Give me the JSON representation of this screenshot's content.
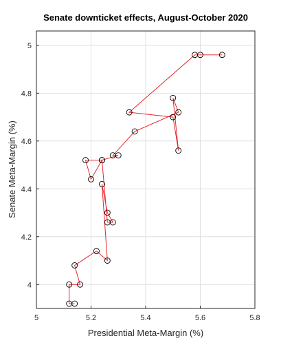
{
  "chart_data": {
    "type": "scatter",
    "title": "Senate downticket effects, August-October 2020",
    "xlabel": "Presidential Meta-Margin (%)",
    "ylabel": "Senate Meta-Margin (%)",
    "xlim": [
      5,
      5.8
    ],
    "ylim": [
      3.9,
      5.06
    ],
    "xticks": [
      "5",
      "5.2",
      "5.4",
      "5.6",
      "5.8"
    ],
    "yticks": [
      "4",
      "4.2",
      "4.4",
      "4.6",
      "4.8",
      "5"
    ],
    "grid": true,
    "line_color": "#e8262b",
    "marker_color": "#000000",
    "x": [
      5.14,
      5.12,
      5.12,
      5.16,
      5.14,
      5.22,
      5.26,
      5.24,
      5.26,
      5.28,
      5.26,
      5.24,
      5.2,
      5.18,
      5.24,
      5.3,
      5.28,
      5.36,
      5.52,
      5.5,
      5.52,
      5.5,
      5.34,
      5.58,
      5.68,
      5.6
    ],
    "y": [
      3.92,
      3.92,
      4.0,
      4.0,
      4.08,
      4.14,
      4.1,
      4.42,
      4.3,
      4.26,
      4.26,
      4.52,
      4.44,
      4.52,
      4.52,
      4.54,
      4.54,
      4.64,
      4.72,
      4.78,
      4.56,
      4.7,
      4.72,
      4.96,
      4.96,
      4.96
    ]
  }
}
